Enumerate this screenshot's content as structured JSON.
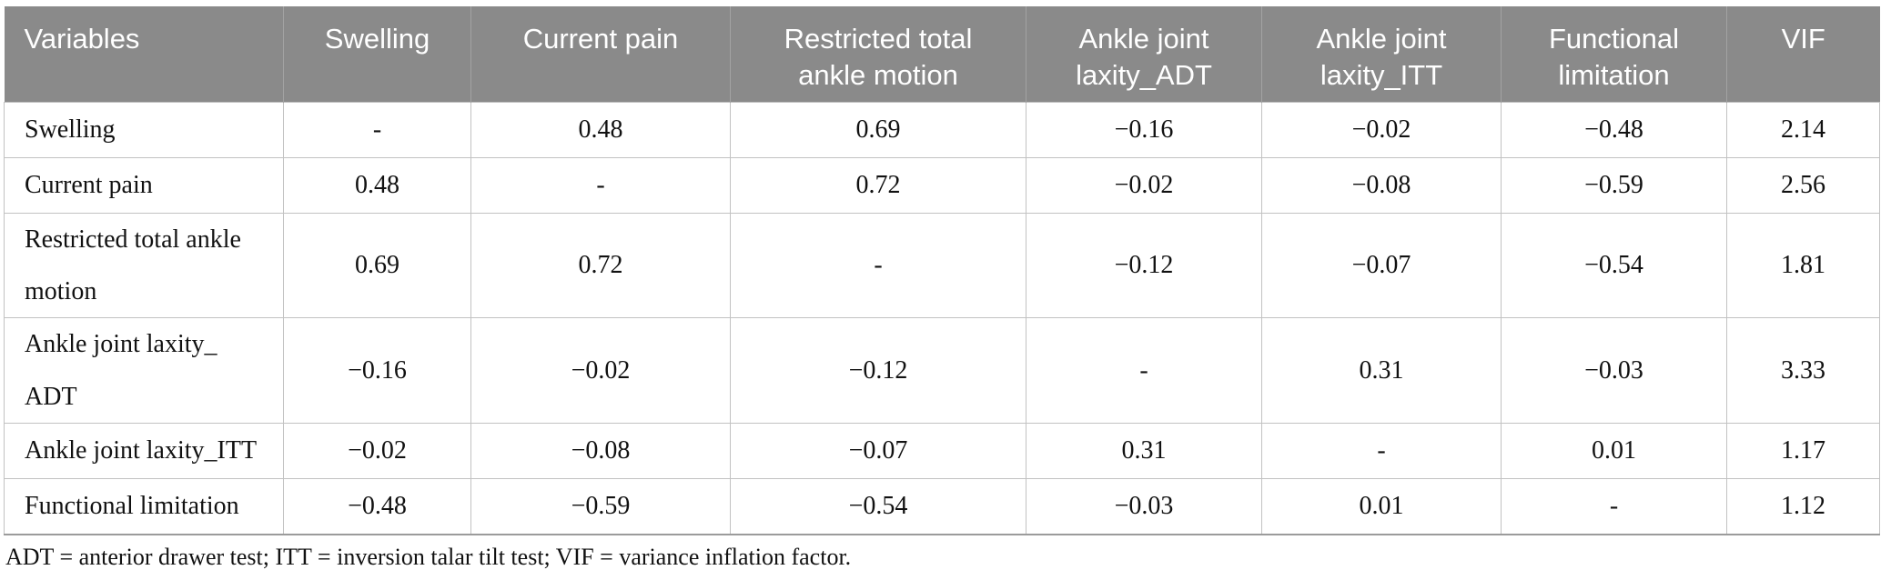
{
  "colors": {
    "header_bg": "#8a8a8a",
    "header_text": "#ffffff",
    "header_separator": "#a3a3a3",
    "grid_line": "#c2c2c2",
    "bottom_rule": "#9b9b9b"
  },
  "table": {
    "columns": [
      "Variables",
      "Swelling",
      "Current pain",
      "Restricted total\nankle motion",
      "Ankle joint\nlaxity_ADT",
      "Ankle joint\nlaxity_ITT",
      "Functional\nlimitation",
      "VIF"
    ],
    "rows": [
      {
        "label": "Swelling",
        "values": [
          "-",
          "0.48",
          "0.69",
          "−0.16",
          "−0.02",
          "−0.48",
          "2.14"
        ]
      },
      {
        "label": "Current pain",
        "values": [
          "0.48",
          "-",
          "0.72",
          "−0.02",
          "−0.08",
          "−0.59",
          "2.56"
        ]
      },
      {
        "label": "Restricted total ankle\nmotion",
        "values": [
          "0.69",
          "0.72",
          "-",
          "−0.12",
          "−0.07",
          "−0.54",
          "1.81"
        ]
      },
      {
        "label": "Ankle joint laxity_\nADT",
        "values": [
          "−0.16",
          "−0.02",
          "−0.12",
          "-",
          "0.31",
          "−0.03",
          "3.33"
        ]
      },
      {
        "label": "Ankle joint laxity_ITT",
        "values": [
          "−0.02",
          "−0.08",
          "−0.07",
          "0.31",
          "-",
          "0.01",
          "1.17"
        ]
      },
      {
        "label": "Functional limitation",
        "values": [
          "−0.48",
          "−0.59",
          "−0.54",
          "−0.03",
          "0.01",
          "-",
          "1.12"
        ]
      }
    ],
    "footnote": "ADT = anterior drawer test; ITT = inversion talar tilt test; VIF = variance inflation factor."
  }
}
